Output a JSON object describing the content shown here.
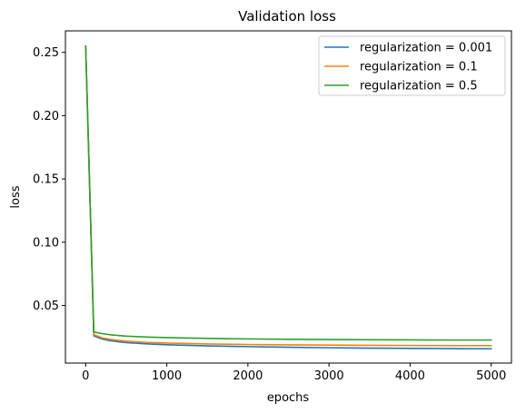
{
  "chart_data": {
    "type": "line",
    "title": "Validation loss",
    "xlabel": "epochs",
    "ylabel": "loss",
    "xlim": [
      -250,
      5250
    ],
    "ylim": [
      0.0045,
      0.267
    ],
    "x_ticks": [
      0,
      1000,
      2000,
      3000,
      4000,
      5000
    ],
    "y_ticks": [
      0.05,
      0.1,
      0.15,
      0.2,
      0.25
    ],
    "x_tick_labels": [
      "0",
      "1000",
      "2000",
      "3000",
      "4000",
      "5000"
    ],
    "y_tick_labels": [
      "0.05",
      "0.10",
      "0.15",
      "0.20",
      "0.25"
    ],
    "grid": false,
    "legend_position": "upper-right",
    "x": [
      0,
      100,
      200,
      300,
      400,
      500,
      750,
      1000,
      1500,
      2000,
      2500,
      3000,
      3500,
      4000,
      4500,
      5000
    ],
    "series": [
      {
        "name": "regularization = 0.001",
        "color": "#1f77b4",
        "values": [
          0.255,
          0.026,
          0.0235,
          0.0222,
          0.0214,
          0.0207,
          0.0197,
          0.019,
          0.0181,
          0.0175,
          0.017,
          0.0166,
          0.0163,
          0.0161,
          0.0159,
          0.0158
        ]
      },
      {
        "name": "regularization = 0.1",
        "color": "#ff7f0e",
        "values": [
          0.255,
          0.027,
          0.0245,
          0.0233,
          0.0225,
          0.0219,
          0.0209,
          0.0203,
          0.0196,
          0.0192,
          0.0189,
          0.0187,
          0.0185,
          0.0184,
          0.0183,
          0.0183
        ]
      },
      {
        "name": "regularization = 0.5",
        "color": "#2ca02c",
        "values": [
          0.255,
          0.029,
          0.0278,
          0.0269,
          0.0263,
          0.0258,
          0.0251,
          0.0246,
          0.024,
          0.0236,
          0.0233,
          0.0231,
          0.0229,
          0.0228,
          0.0227,
          0.0227
        ]
      }
    ]
  }
}
